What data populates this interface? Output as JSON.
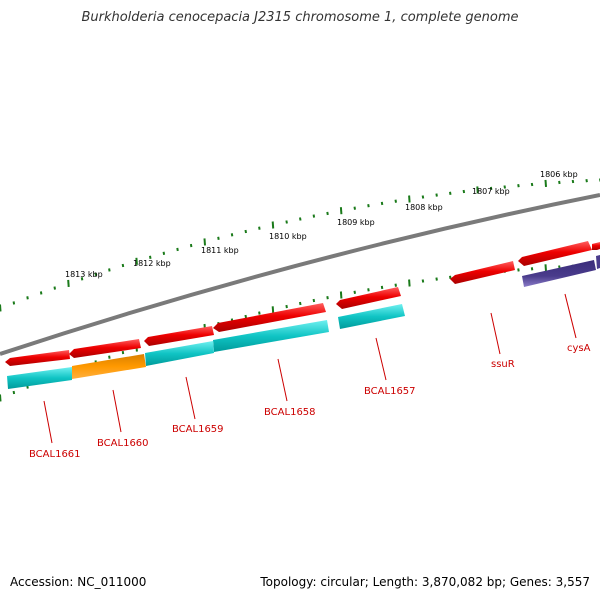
{
  "title": "Burkholderia cenocepacia J2315 chromosome 1, complete genome",
  "footer": {
    "accession": "Accession: NC_011000",
    "summary": "Topology: circular; Length: 3,870,082 bp; Genes: 3,557"
  },
  "scale_labels": [
    "1806 kbp",
    "1807 kbp",
    "1808 kbp",
    "1809 kbp",
    "1810 kbp",
    "1811 kbp",
    "1812 kbp",
    "1813 kbp"
  ],
  "gene_labels": [
    "cysA",
    "ssuR",
    "BCAL1657",
    "BCAL1658",
    "BCAL1659",
    "BCAL1660",
    "BCAL1661"
  ],
  "colors": {
    "backbone": "#808080",
    "forward_cds": "#ff0000",
    "reverse_cyan": "#00c8c8",
    "reverse_orange": "#ff9900",
    "reverse_purple": "#4a3c8c",
    "tick": "#1a7a1a",
    "label": "#cc0000"
  }
}
